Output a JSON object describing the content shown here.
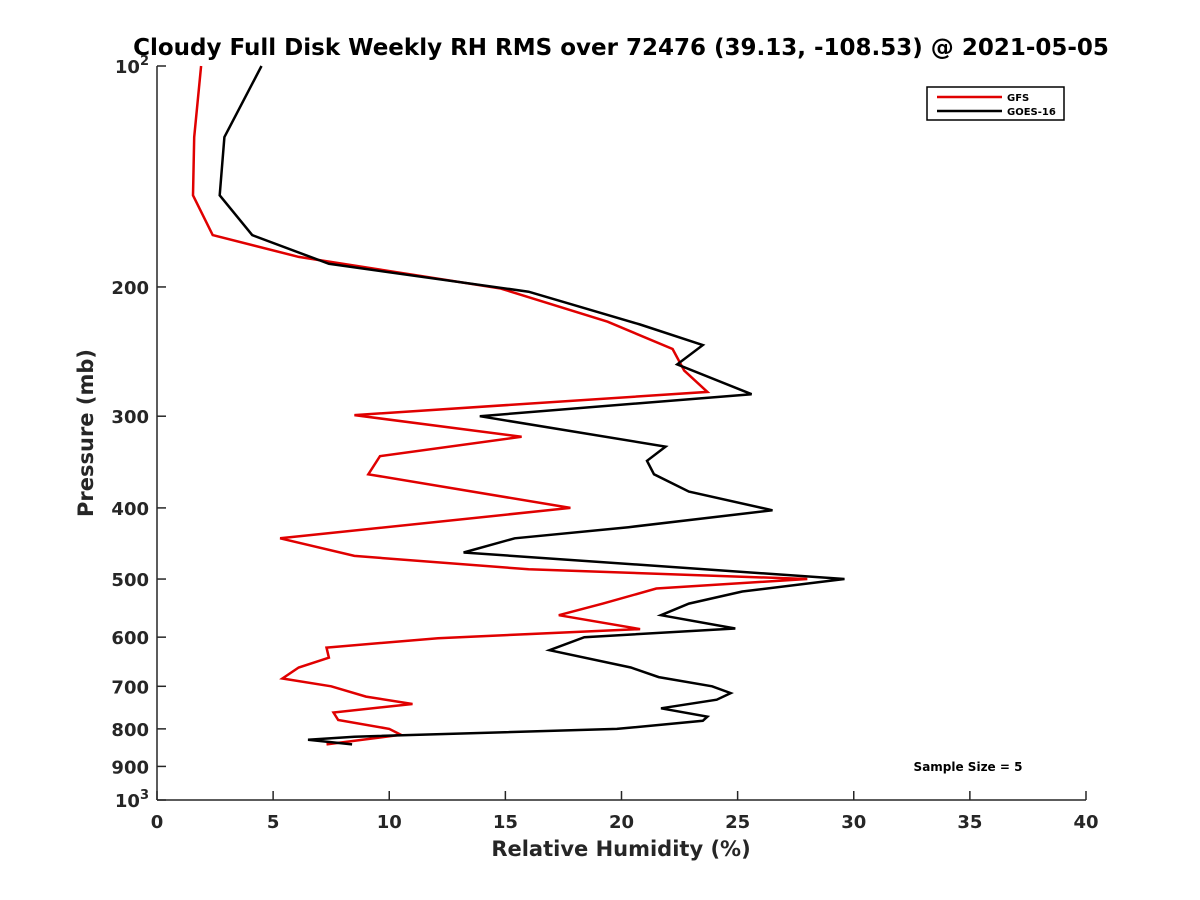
{
  "chart_data": {
    "type": "line",
    "title": "Cloudy Full Disk Weekly RH RMS over 72476 (39.13, -108.53) @ 2021-05-05",
    "xlabel": "Relative Humidity (%)",
    "ylabel": "Pressure (mb)",
    "xlim": [
      0,
      40
    ],
    "ylim": [
      100,
      1000
    ],
    "y_scale": "log",
    "y_reversed": true,
    "x_ticks": [
      0,
      5,
      10,
      15,
      20,
      25,
      30,
      35,
      40
    ],
    "y_ticks": [
      {
        "value": 100,
        "label": "10",
        "sup": "2"
      },
      {
        "value": 200,
        "label": "200",
        "sup": ""
      },
      {
        "value": 300,
        "label": "300",
        "sup": ""
      },
      {
        "value": 400,
        "label": "400",
        "sup": ""
      },
      {
        "value": 500,
        "label": "500",
        "sup": ""
      },
      {
        "value": 600,
        "label": "600",
        "sup": ""
      },
      {
        "value": 700,
        "label": "700",
        "sup": ""
      },
      {
        "value": 800,
        "label": "800",
        "sup": ""
      },
      {
        "value": 900,
        "label": "900",
        "sup": ""
      },
      {
        "value": 1000,
        "label": "10",
        "sup": "3"
      }
    ],
    "grid": false,
    "legend_position": "top-right",
    "annotation": "Sample Size = 5",
    "series": [
      {
        "name": "GFS",
        "color": "#e00000",
        "points": [
          [
            1.9,
            100
          ],
          [
            1.6,
            125
          ],
          [
            1.55,
            150
          ],
          [
            2.4,
            170
          ],
          [
            6.1,
            182
          ],
          [
            14.8,
            201
          ],
          [
            19.4,
            223
          ],
          [
            22.2,
            243
          ],
          [
            22.7,
            260
          ],
          [
            23.7,
            278
          ],
          [
            8.5,
            299
          ],
          [
            15.7,
            320
          ],
          [
            9.6,
            340
          ],
          [
            9.1,
            360
          ],
          [
            17.8,
            400
          ],
          [
            5.3,
            440
          ],
          [
            8.5,
            465
          ],
          [
            16.0,
            485
          ],
          [
            28.0,
            500
          ],
          [
            21.5,
            515
          ],
          [
            19.2,
            540
          ],
          [
            17.3,
            560
          ],
          [
            20.8,
            585
          ],
          [
            12.1,
            602
          ],
          [
            7.3,
            620
          ],
          [
            7.4,
            640
          ],
          [
            6.1,
            660
          ],
          [
            5.4,
            683
          ],
          [
            7.5,
            700
          ],
          [
            9.0,
            723
          ],
          [
            11.0,
            740
          ],
          [
            7.6,
            760
          ],
          [
            7.8,
            778
          ],
          [
            10.0,
            800
          ],
          [
            10.5,
            815
          ],
          [
            7.3,
            840
          ]
        ]
      },
      {
        "name": "GOES-16",
        "color": "#000000",
        "points": [
          [
            4.5,
            100
          ],
          [
            2.9,
            125
          ],
          [
            2.7,
            150
          ],
          [
            4.1,
            170
          ],
          [
            7.4,
            186
          ],
          [
            16.0,
            203
          ],
          [
            20.8,
            225
          ],
          [
            23.5,
            240
          ],
          [
            22.4,
            255
          ],
          [
            25.6,
            280
          ],
          [
            13.9,
            300
          ],
          [
            21.9,
            330
          ],
          [
            21.1,
            345
          ],
          [
            21.4,
            360
          ],
          [
            22.9,
            380
          ],
          [
            26.5,
            403
          ],
          [
            20.3,
            425
          ],
          [
            15.4,
            440
          ],
          [
            13.2,
            460
          ],
          [
            29.6,
            500
          ],
          [
            25.2,
            520
          ],
          [
            22.9,
            540
          ],
          [
            21.7,
            560
          ],
          [
            24.9,
            584
          ],
          [
            18.4,
            600
          ],
          [
            16.9,
            625
          ],
          [
            20.4,
            660
          ],
          [
            21.6,
            680
          ],
          [
            23.9,
            700
          ],
          [
            24.7,
            715
          ],
          [
            24.1,
            730
          ],
          [
            21.7,
            750
          ],
          [
            23.7,
            770
          ],
          [
            23.5,
            780
          ],
          [
            19.8,
            800
          ],
          [
            8.5,
            820
          ],
          [
            6.5,
            828
          ],
          [
            8.4,
            840
          ]
        ]
      }
    ]
  }
}
